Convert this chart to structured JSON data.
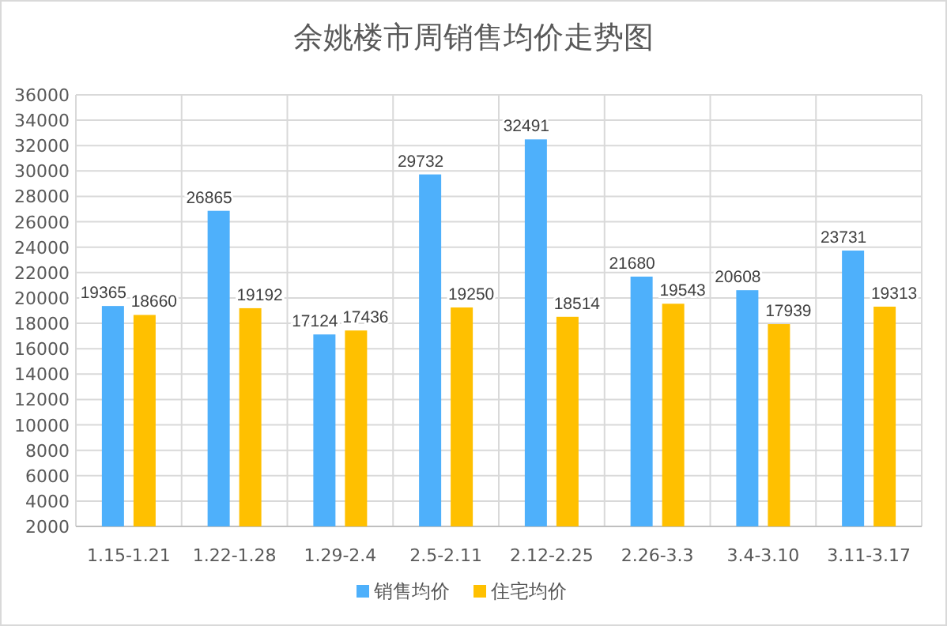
{
  "chart_data": {
    "type": "bar",
    "title": "余姚楼市周销售均价走势图",
    "categories": [
      "1.15-1.21",
      "1.22-1.28",
      "1.29-2.4",
      "2.5-2.11",
      "2.12-2.25",
      "2.26-3.3",
      "3.4-3.10",
      "3.11-3.17"
    ],
    "series": [
      {
        "name": "销售均价",
        "color": "#4eb0fb",
        "values": [
          19365,
          26865,
          17124,
          29732,
          32491,
          21680,
          20608,
          23731
        ]
      },
      {
        "name": "住宅均价",
        "color": "#ffc000",
        "values": [
          18660,
          19192,
          17436,
          19250,
          18514,
          19543,
          17939,
          19313
        ]
      }
    ],
    "ylim": [
      2000,
      36000
    ],
    "yticks": [
      2000,
      4000,
      6000,
      8000,
      10000,
      12000,
      14000,
      16000,
      18000,
      20000,
      22000,
      24000,
      26000,
      28000,
      30000,
      32000,
      34000,
      36000
    ],
    "grid": true,
    "legend": "bottom",
    "data_labels": true
  }
}
